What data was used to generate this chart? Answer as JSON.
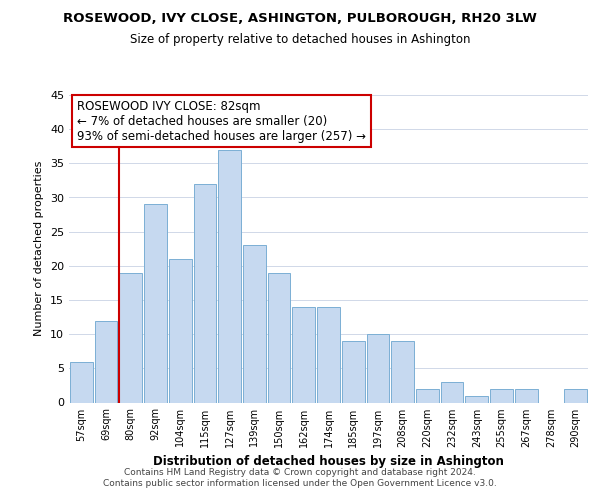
{
  "title": "ROSEWOOD, IVY CLOSE, ASHINGTON, PULBOROUGH, RH20 3LW",
  "subtitle": "Size of property relative to detached houses in Ashington",
  "bar_labels": [
    "57sqm",
    "69sqm",
    "80sqm",
    "92sqm",
    "104sqm",
    "115sqm",
    "127sqm",
    "139sqm",
    "150sqm",
    "162sqm",
    "174sqm",
    "185sqm",
    "197sqm",
    "208sqm",
    "220sqm",
    "232sqm",
    "243sqm",
    "255sqm",
    "267sqm",
    "278sqm",
    "290sqm"
  ],
  "bar_values": [
    6,
    12,
    19,
    29,
    21,
    32,
    37,
    23,
    19,
    14,
    14,
    9,
    10,
    9,
    2,
    3,
    1,
    2,
    2,
    0,
    2
  ],
  "bar_color": "#c6d9f0",
  "bar_edge_color": "#7bafd4",
  "ylabel": "Number of detached properties",
  "xlabel": "Distribution of detached houses by size in Ashington",
  "ylim": [
    0,
    45
  ],
  "yticks": [
    0,
    5,
    10,
    15,
    20,
    25,
    30,
    35,
    40,
    45
  ],
  "annotation_title": "ROSEWOOD IVY CLOSE: 82sqm",
  "annotation_line1": "← 7% of detached houses are smaller (20)",
  "annotation_line2": "93% of semi-detached houses are larger (257) →",
  "property_line_label_idx": 2,
  "footer_line1": "Contains HM Land Registry data © Crown copyright and database right 2024.",
  "footer_line2": "Contains public sector information licensed under the Open Government Licence v3.0.",
  "background_color": "#ffffff",
  "grid_color": "#d0d8e8",
  "annotation_box_color": "#ffffff",
  "annotation_box_edge": "#cc0000",
  "property_line_color": "#cc0000"
}
